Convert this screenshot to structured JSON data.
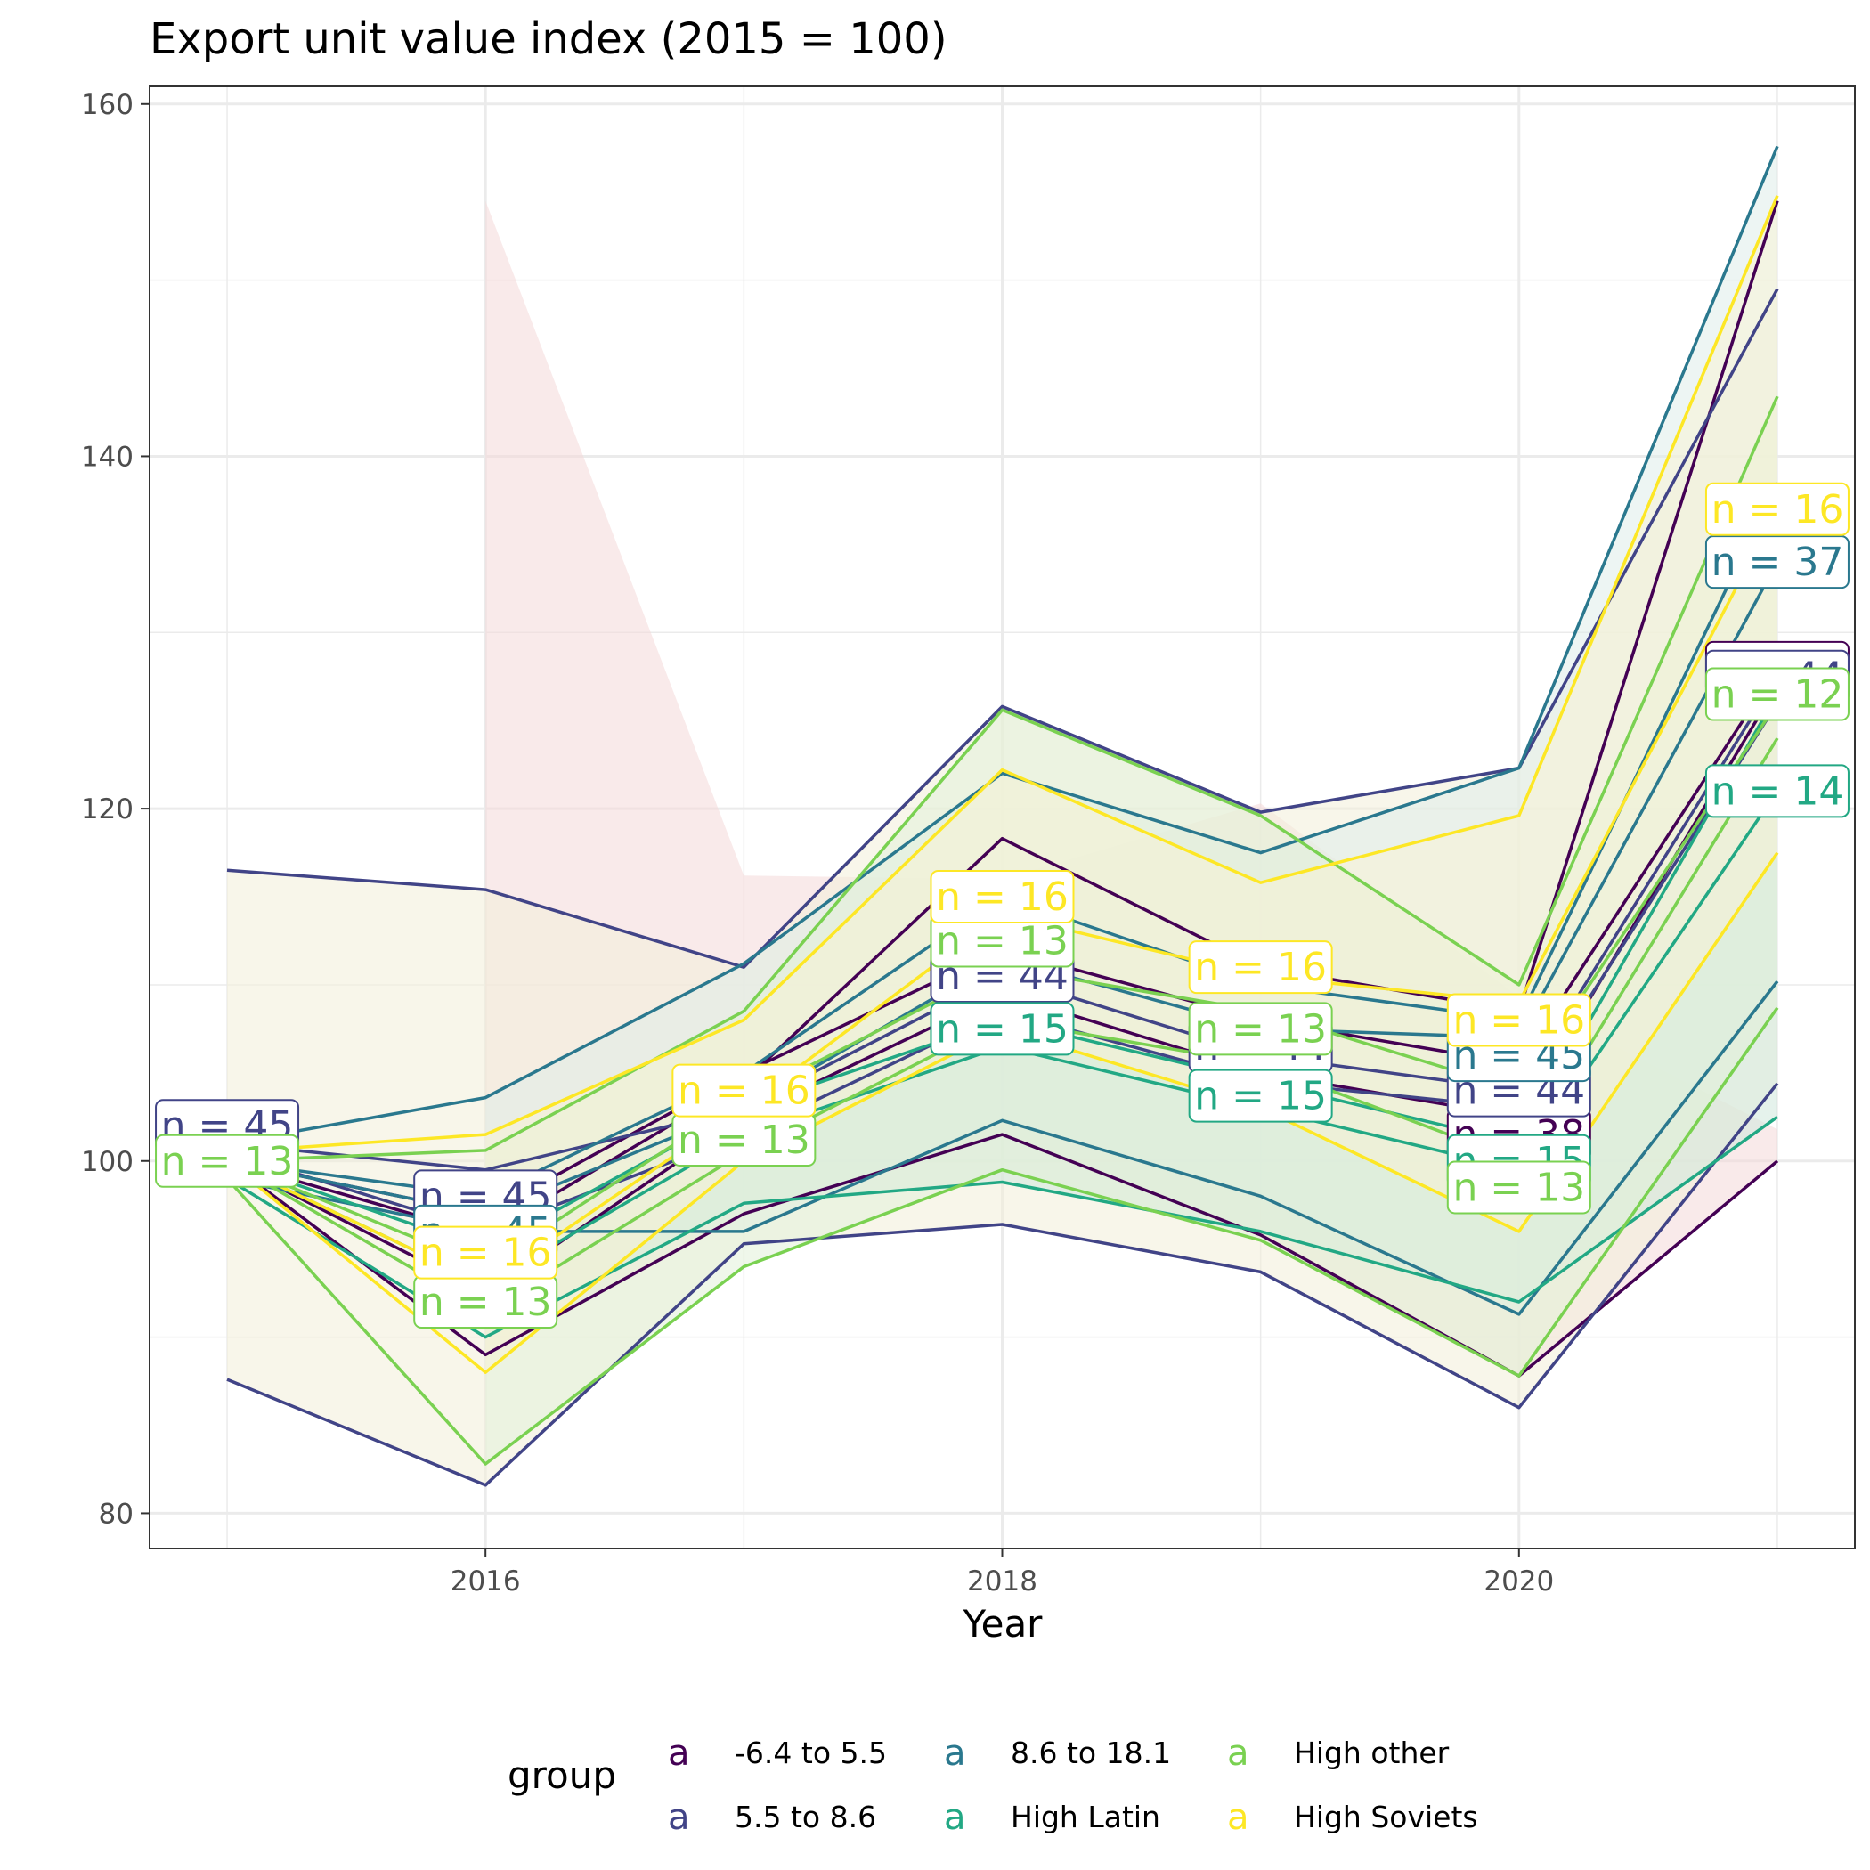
{
  "chart_data": {
    "type": "line",
    "title": "Export unit value index (2015 = 100)",
    "xlabel": "Year",
    "ylabel": "",
    "x": [
      2015,
      2016,
      2017,
      2018,
      2019,
      2020,
      2021
    ],
    "x_ticks": [
      2016,
      2018,
      2020
    ],
    "x_tick_labels": [
      "2016",
      "2018",
      "2020"
    ],
    "xlim": [
      2014.7,
      2021.3
    ],
    "ylim": [
      78.0,
      161.0
    ],
    "y_ticks": [
      80,
      100,
      120,
      140,
      160
    ],
    "y_tick_labels": [
      "80",
      "100",
      "120",
      "140",
      "160"
    ],
    "grid": true,
    "legend": {
      "title": "group",
      "position": "bottom",
      "key_glyph": "a",
      "entries": [
        "-6.4 to 5.5",
        "5.5 to 8.6",
        "8.6 to 18.1",
        "High Latin",
        "High other",
        "High Soviets"
      ]
    },
    "series": [
      {
        "name": "-6.4 to 5.5",
        "color": "#440154",
        "lines": [
          [
            100.0,
            95.8,
            104.5,
            118.3,
            111.0,
            108.5,
            154.5
          ],
          [
            100.0,
            97.0,
            105.0,
            112.0,
            108.0,
            105.5,
            128.0
          ],
          [
            100.0,
            92.5,
            102.5,
            109.5,
            105.0,
            102.5,
            127.0
          ],
          [
            100.0,
            89.0,
            97.0,
            101.5,
            95.8,
            87.8,
            100.0
          ]
        ],
        "band": [
          89.0,
          97.0,
          101.5,
          95.8,
          87.8,
          100.0,
          101.8,
          109.3,
          120.3,
          116.0,
          116.2,
          154.5
        ],
        "band_color": "#f4d8d8",
        "labels": [
          {
            "x": 2020.0,
            "y": 101.5,
            "text": "n = 38"
          },
          {
            "x": 2021.0,
            "y": 128.0,
            "text": "n = 38"
          }
        ]
      },
      {
        "name": "5.5 to 8.6",
        "color": "#414487",
        "lines": [
          [
            116.5,
            115.4,
            111.0,
            125.8,
            119.8,
            122.3,
            149.5
          ],
          [
            101.0,
            99.5,
            103.0,
            110.5,
            106.0,
            104.0,
            127.5
          ],
          [
            100.5,
            96.0,
            101.5,
            108.5,
            104.5,
            103.0,
            126.0
          ],
          [
            87.6,
            81.6,
            95.3,
            96.4,
            93.7,
            86.0,
            104.4
          ]
        ],
        "band": [
          87.6,
          81.6,
          95.3,
          96.4,
          93.7,
          86.0,
          104.4,
          149.5,
          122.3,
          119.8,
          125.8,
          111.0,
          115.4,
          116.5
        ],
        "band_color": "#f2efd8",
        "labels": [
          {
            "x": 2015.0,
            "y": 102.0,
            "text": "n = 45"
          },
          {
            "x": 2016.0,
            "y": 98.0,
            "text": "n = 45"
          },
          {
            "x": 2018.0,
            "y": 110.5,
            "text": "n = 44"
          },
          {
            "x": 2019.0,
            "y": 106.5,
            "text": "n = 44"
          },
          {
            "x": 2020.0,
            "y": 104.0,
            "text": "n = 44"
          },
          {
            "x": 2021.0,
            "y": 127.5,
            "text": "n = 44"
          }
        ]
      },
      {
        "name": "8.6 to 18.1",
        "color": "#2a788e",
        "lines": [
          [
            101.0,
            103.6,
            111.2,
            122.0,
            117.5,
            122.3,
            157.6
          ],
          [
            100.0,
            98.0,
            105.0,
            115.0,
            110.0,
            108.0,
            138.5
          ],
          [
            100.0,
            97.0,
            103.0,
            111.5,
            107.5,
            107.0,
            134.0
          ],
          [
            99.0,
            96.0,
            96.0,
            102.3,
            98.0,
            91.3,
            110.2
          ]
        ],
        "band": [
          96.0,
          96.0,
          102.3,
          98.0,
          91.3,
          110.2,
          157.6,
          122.3,
          117.5,
          122.0,
          111.2,
          103.6
        ],
        "band_color": "#dfece9",
        "labels": [
          {
            "x": 2016.0,
            "y": 96.0,
            "text": "n = 45"
          },
          {
            "x": 2020.0,
            "y": 106.0,
            "text": "n = 45"
          },
          {
            "x": 2021.0,
            "y": 134.0,
            "text": "n = 37"
          }
        ]
      },
      {
        "name": "High Latin",
        "color": "#22a884",
        "lines": [
          [
            100.0,
            95.0,
            103.0,
            108.0,
            104.5,
            101.0,
            126.5
          ],
          [
            100.0,
            93.0,
            101.5,
            106.5,
            103.0,
            99.5,
            121.0
          ],
          [
            99.0,
            90.0,
            97.6,
            98.8,
            96.0,
            92.0,
            102.5
          ]
        ],
        "band": [
          90.0,
          97.6,
          98.8,
          96.0,
          92.0,
          102.5,
          126.5,
          101.0,
          104.5,
          108.0,
          103.0,
          95.0
        ],
        "band_color": "#cfe8dd",
        "labels": [
          {
            "x": 2018.0,
            "y": 107.5,
            "text": "n = 15"
          },
          {
            "x": 2019.0,
            "y": 103.7,
            "text": "n = 15"
          },
          {
            "x": 2020.0,
            "y": 100.0,
            "text": "n = 15"
          },
          {
            "x": 2021.0,
            "y": 121.0,
            "text": "n = 14"
          }
        ]
      },
      {
        "name": "High other",
        "color": "#7ad151",
        "lines": [
          [
            100.0,
            100.6,
            108.5,
            125.6,
            119.6,
            110.0,
            143.4
          ],
          [
            100.0,
            94.0,
            103.5,
            111.0,
            108.5,
            104.0,
            126.0
          ],
          [
            100.0,
            91.5,
            100.5,
            108.0,
            105.5,
            100.0,
            124.0
          ],
          [
            99.0,
            82.8,
            94.0,
            99.5,
            95.5,
            87.8,
            108.7
          ]
        ],
        "band": [
          82.8,
          94.0,
          99.5,
          95.5,
          87.8,
          108.7,
          143.4,
          110.0,
          119.6,
          125.6,
          108.5,
          100.6
        ],
        "band_color": "#e2f1d9",
        "labels": [
          {
            "x": 2015.0,
            "y": 100.0,
            "text": "n = 13"
          },
          {
            "x": 2016.0,
            "y": 92.0,
            "text": "n = 13"
          },
          {
            "x": 2017.0,
            "y": 101.2,
            "text": "n = 13"
          },
          {
            "x": 2018.0,
            "y": 112.5,
            "text": "n = 13"
          },
          {
            "x": 2019.0,
            "y": 107.5,
            "text": "n = 13"
          },
          {
            "x": 2020.0,
            "y": 98.5,
            "text": "n = 13"
          },
          {
            "x": 2021.0,
            "y": 126.5,
            "text": "n = 12"
          }
        ]
      },
      {
        "name": "High Soviets",
        "color": "#fde725",
        "lines": [
          [
            100.5,
            101.5,
            108.0,
            122.2,
            115.8,
            119.6,
            154.8
          ],
          [
            100.0,
            93.0,
            103.0,
            114.0,
            110.5,
            109.0,
            137.0
          ],
          [
            100.0,
            88.0,
            100.0,
            107.5,
            103.0,
            96.0,
            117.5
          ]
        ],
        "band": [
          88.0,
          100.0,
          107.5,
          103.0,
          96.0,
          117.5,
          154.8,
          119.6,
          115.8,
          122.2,
          108.0,
          101.5
        ],
        "band_color": "#f7f3d6",
        "labels": [
          {
            "x": 2016.0,
            "y": 94.8,
            "text": "n = 16"
          },
          {
            "x": 2017.0,
            "y": 104.0,
            "text": "n = 16"
          },
          {
            "x": 2018.0,
            "y": 115.0,
            "text": "n = 16"
          },
          {
            "x": 2019.0,
            "y": 111.0,
            "text": "n = 16"
          },
          {
            "x": 2020.0,
            "y": 108.0,
            "text": "n = 16"
          },
          {
            "x": 2021.0,
            "y": 137.0,
            "text": "n = 16"
          }
        ]
      }
    ]
  }
}
